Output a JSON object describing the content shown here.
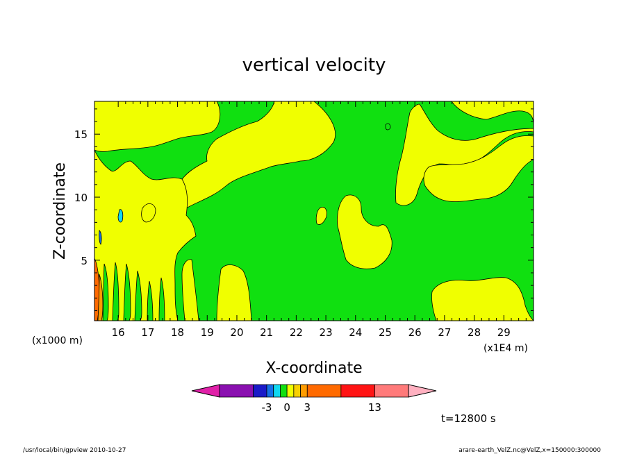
{
  "chart_data": {
    "type": "heatmap",
    "title": "vertical velocity",
    "xlabel": "X-coordinate",
    "ylabel": "Z-coordinate",
    "x_unit_left": "(x1000 m)",
    "x_unit_right": "(x1E4 m)",
    "xlim": [
      15.2,
      30.0
    ],
    "ylim": [
      0.2,
      17.6
    ],
    "x_ticks": [
      "16",
      "17",
      "18",
      "19",
      "20",
      "21",
      "22",
      "23",
      "24",
      "25",
      "26",
      "27",
      "28",
      "29"
    ],
    "y_ticks": [
      "5",
      "10",
      "15"
    ],
    "time_label": "t=12800 s",
    "colorbar": {
      "tick_labels": [
        "-3",
        "0",
        "3",
        "13"
      ],
      "levels": [
        -10,
        -5,
        -3,
        -2,
        -1,
        0,
        1,
        2,
        3,
        8,
        13,
        18
      ],
      "colors": [
        "#e020a8",
        "#8a10b0",
        "#1a1ac8",
        "#1470e6",
        "#10d8f0",
        "#10e010",
        "#f0ff00",
        "#f8d000",
        "#ff9c00",
        "#ff6a00",
        "#ff1414",
        "#ff7a7a",
        "#ffb0c0"
      ]
    },
    "fill_colors": {
      "green": "#10e010",
      "yellow": "#f0ff00",
      "orange": "#ff9c00",
      "red_orange": "#ff6a00",
      "cyan": "#10d8f0",
      "blue": "#1470e6"
    }
  },
  "footer": {
    "left": "/usr/local/bin/gpview   2010-10-27",
    "right": "arare-earth_VelZ.nc@VelZ,x=150000:300000"
  }
}
